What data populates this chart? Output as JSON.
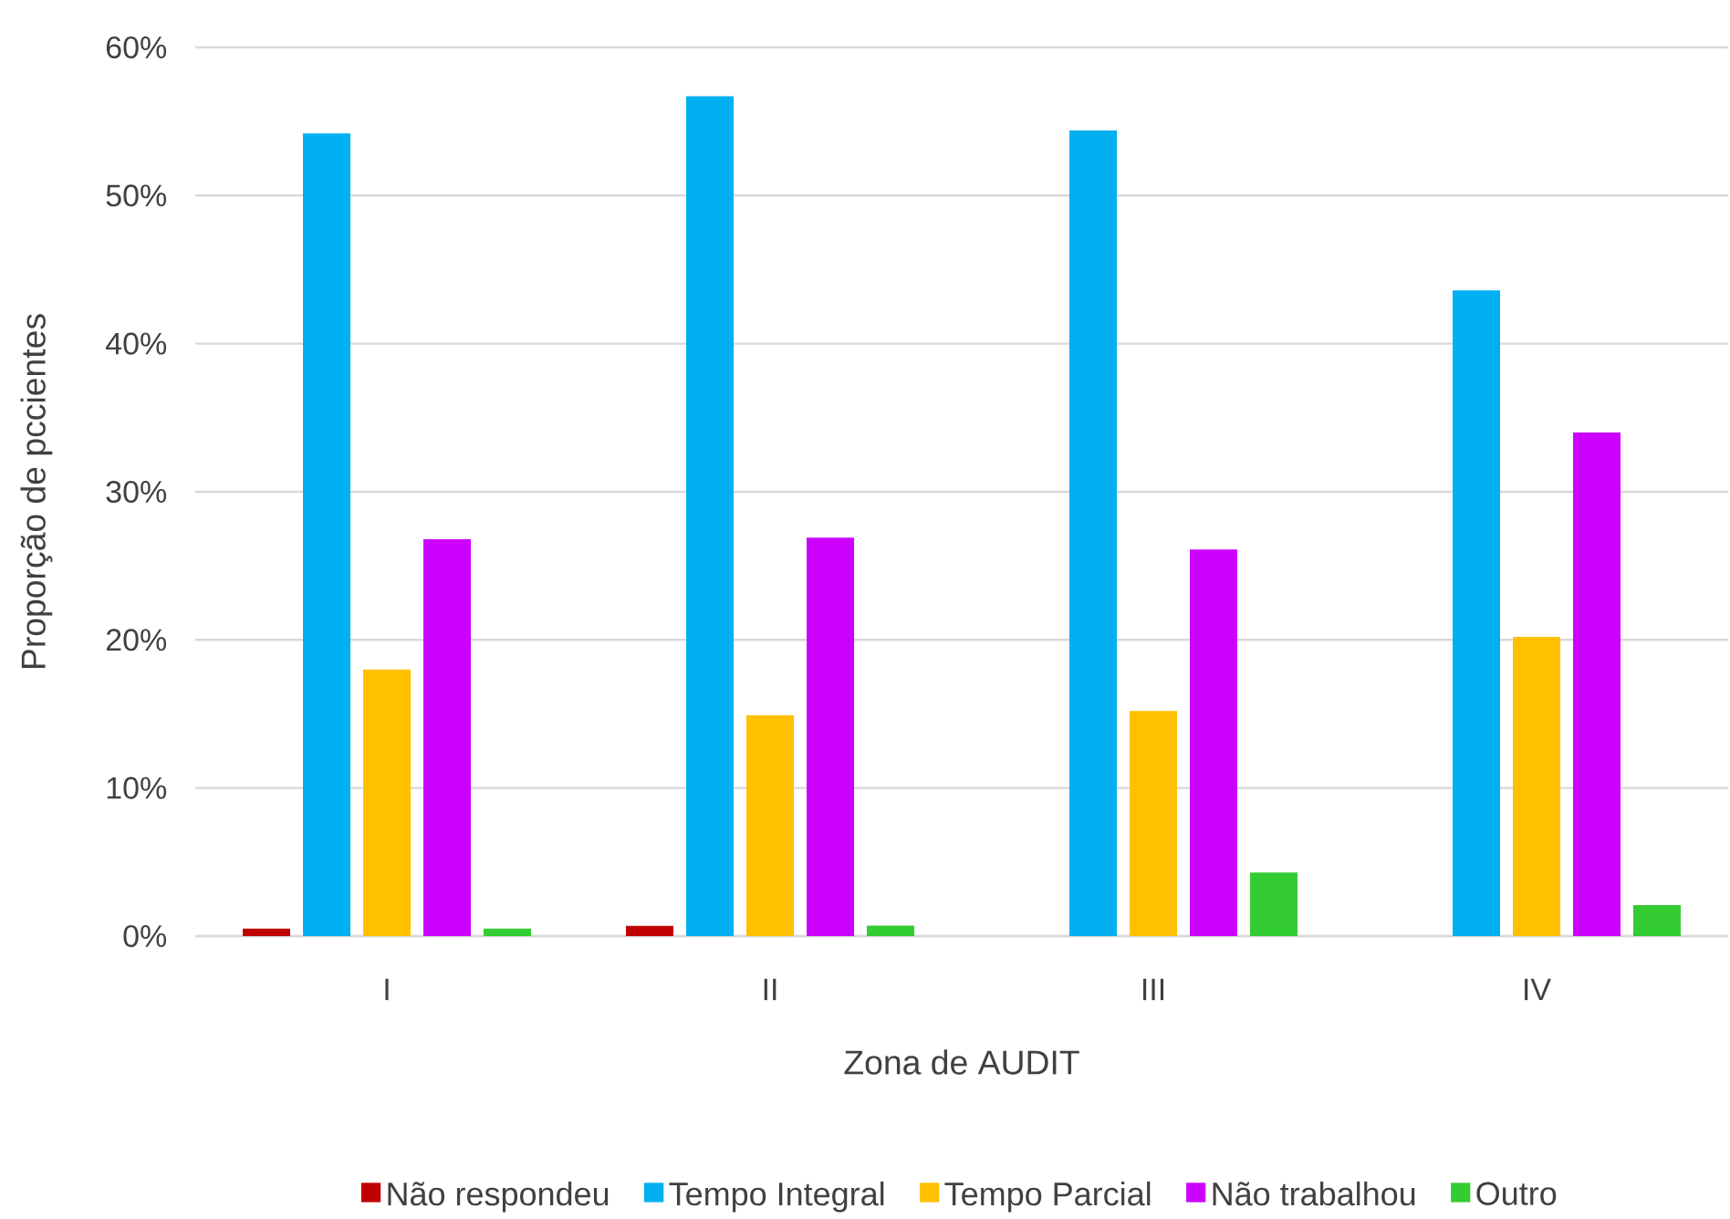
{
  "chart_data": {
    "type": "bar",
    "xlabel": "Zona de AUDIT",
    "ylabel": "Proporção de pccientes",
    "categories": [
      "I",
      "II",
      "III",
      "IV"
    ],
    "series": [
      {
        "name": "Não respondeu",
        "color": "#c00000",
        "values": [
          0.5,
          0.7,
          0,
          0
        ]
      },
      {
        "name": "Tempo Integral",
        "color": "#00b0f0",
        "values": [
          54.2,
          56.7,
          54.4,
          43.6
        ]
      },
      {
        "name": "Tempo Parcial",
        "color": "#ffc000",
        "values": [
          18.0,
          14.9,
          15.2,
          20.2
        ]
      },
      {
        "name": "Não trabalhou",
        "color": "#cc00ff",
        "values": [
          26.8,
          26.9,
          26.1,
          34.0
        ]
      },
      {
        "name": "Outro",
        "color": "#33cc33",
        "values": [
          0.5,
          0.7,
          4.3,
          2.1
        ]
      }
    ],
    "ylim": [
      0,
      60
    ],
    "yticks": [
      {
        "value": 0,
        "label": "0%"
      },
      {
        "value": 10,
        "label": "10%"
      },
      {
        "value": 20,
        "label": "20%"
      },
      {
        "value": 30,
        "label": "30%"
      },
      {
        "value": 40,
        "label": "40%"
      },
      {
        "value": 50,
        "label": "50%"
      },
      {
        "value": 60,
        "label": "60%"
      }
    ],
    "grid": "y",
    "legend": "bottom"
  }
}
